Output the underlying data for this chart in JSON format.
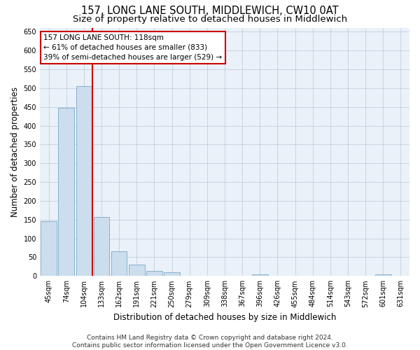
{
  "title": "157, LONG LANE SOUTH, MIDDLEWICH, CW10 0AT",
  "subtitle": "Size of property relative to detached houses in Middlewich",
  "xlabel": "Distribution of detached houses by size in Middlewich",
  "ylabel": "Number of detached properties",
  "categories": [
    "45sqm",
    "74sqm",
    "104sqm",
    "133sqm",
    "162sqm",
    "191sqm",
    "221sqm",
    "250sqm",
    "279sqm",
    "309sqm",
    "338sqm",
    "367sqm",
    "396sqm",
    "426sqm",
    "455sqm",
    "484sqm",
    "514sqm",
    "543sqm",
    "572sqm",
    "601sqm",
    "631sqm"
  ],
  "values": [
    145,
    447,
    505,
    157,
    65,
    30,
    14,
    9,
    0,
    0,
    0,
    0,
    5,
    0,
    0,
    0,
    0,
    0,
    0,
    5,
    0
  ],
  "bar_color": "#ccdded",
  "bar_edge_color": "#7aaac8",
  "vline_x": 2.5,
  "vline_color": "#cc0000",
  "annotation_text": "157 LONG LANE SOUTH: 118sqm\n← 61% of detached houses are smaller (833)\n39% of semi-detached houses are larger (529) →",
  "annotation_box_color": "#ffffff",
  "annotation_box_edge": "#cc0000",
  "ylim": [
    0,
    660
  ],
  "yticks": [
    0,
    50,
    100,
    150,
    200,
    250,
    300,
    350,
    400,
    450,
    500,
    550,
    600,
    650
  ],
  "footer": "Contains HM Land Registry data © Crown copyright and database right 2024.\nContains public sector information licensed under the Open Government Licence v3.0.",
  "background_color": "#ffffff",
  "plot_bg_color": "#eaf1f8",
  "title_fontsize": 10.5,
  "subtitle_fontsize": 9.5,
  "axis_label_fontsize": 8.5,
  "tick_fontsize": 7,
  "footer_fontsize": 6.5,
  "annotation_fontsize": 7.5
}
